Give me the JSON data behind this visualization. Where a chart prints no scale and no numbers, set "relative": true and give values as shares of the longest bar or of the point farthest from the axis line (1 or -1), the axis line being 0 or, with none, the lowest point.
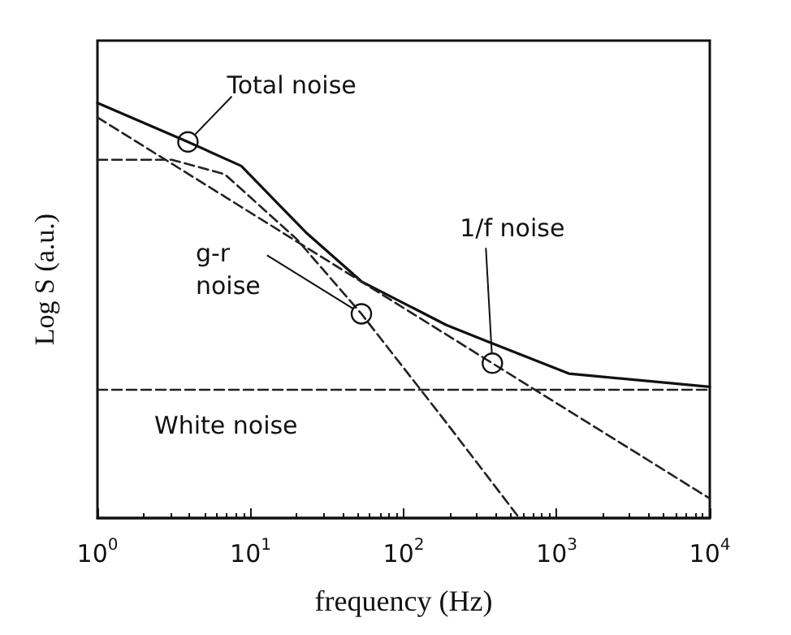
{
  "chart_data": {
    "type": "line",
    "relative": true,
    "xlabel": "frequency (Hz)",
    "ylabel": "Log S (a.u.)",
    "log": "x",
    "xlim": [
      1,
      10000
    ],
    "xticks": [
      {
        "value": 1,
        "label": "10$^{0}$"
      },
      {
        "value": 10,
        "label": "10$^{1}$"
      },
      {
        "value": 100,
        "label": "10$^{2}$"
      },
      {
        "value": 1000,
        "label": "10$^{3}$"
      },
      {
        "value": 10000,
        "label": "10$^{4}$"
      }
    ],
    "grid": false,
    "marker": "none",
    "series": [
      {
        "color": "#111111",
        "line_style": "solid",
        "x": [
          1,
          3.9,
          8.7,
          23,
          53,
          190,
          350,
          1200,
          10000
        ],
        "values": [
          1.0,
          0.906,
          0.848,
          0.688,
          0.57,
          0.465,
          0.426,
          0.348,
          0.316
        ]
      },
      {
        "color": "#222222",
        "line_style": "dashed",
        "x": [
          1,
          10000
        ],
        "values": [
          0.965,
          0.047
        ]
      },
      {
        "color": "#222222",
        "line_style": "dashed",
        "x": [
          1,
          3.06,
          6.8,
          20,
          53,
          190,
          570
        ],
        "values": [
          0.863,
          0.863,
          0.828,
          0.672,
          0.492,
          0.23,
          0
        ]
      },
      {
        "color": "#222222",
        "line_style": "dashed",
        "x": [
          1,
          10000
        ],
        "values": [
          0.309,
          0.309
        ]
      }
    ],
    "annotations": [
      {
        "text": "Total noise",
        "x": 3.9,
        "y": 0.906
      },
      {
        "text": "g-r noise",
        "x": 53,
        "y": 0.492
      },
      {
        "text": "1/f noise",
        "x": 380,
        "y": 0.373
      },
      "White noise"
    ]
  }
}
